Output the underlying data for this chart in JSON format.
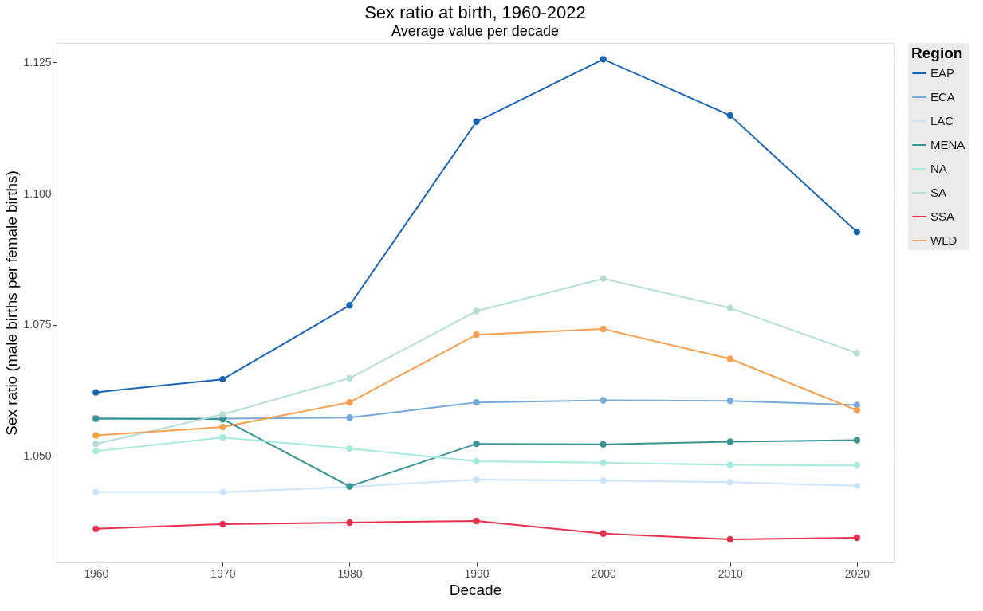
{
  "chart_data": {
    "type": "line",
    "title": "Sex ratio at birth, 1960-2022",
    "subtitle": "Average value per decade",
    "xlabel": "Decade",
    "ylabel": "Sex ratio (male births per female births)",
    "legend_title": "Region",
    "x": [
      1960,
      1970,
      1980,
      1990,
      2000,
      2010,
      2020
    ],
    "series": [
      {
        "name": "EAP",
        "color": "#1764b4",
        "values": [
          1.0621,
          1.0646,
          1.0787,
          1.1137,
          1.1256,
          1.1149,
          1.0927
        ]
      },
      {
        "name": "ECA",
        "color": "#74a9d8",
        "values": [
          1.0571,
          1.0571,
          1.0573,
          1.0602,
          1.0606,
          1.0605,
          1.0597
        ]
      },
      {
        "name": "LAC",
        "color": "#cce4fb",
        "values": [
          1.0431,
          1.0431,
          1.0441,
          1.0455,
          1.0453,
          1.045,
          1.0443
        ]
      },
      {
        "name": "MENA",
        "color": "#3a9494",
        "values": [
          1.0571,
          1.057,
          1.0442,
          1.0523,
          1.0522,
          1.0527,
          1.053
        ]
      },
      {
        "name": "NA",
        "color": "#a5ebde",
        "values": [
          1.0509,
          1.0535,
          1.0514,
          1.049,
          1.0487,
          1.0483,
          1.0482
        ]
      },
      {
        "name": "SA",
        "color": "#b5ded7",
        "values": [
          1.0523,
          1.0579,
          1.0648,
          1.0776,
          1.0838,
          1.0782,
          1.0696
        ]
      },
      {
        "name": "SSA",
        "color": "#e8304e",
        "values": [
          1.0361,
          1.037,
          1.0373,
          1.0376,
          1.0352,
          1.0341,
          1.0344
        ]
      },
      {
        "name": "WLD",
        "color": "#f5a04f",
        "values": [
          1.0539,
          1.0555,
          1.0602,
          1.0731,
          1.0742,
          1.0685,
          1.0587
        ]
      }
    ],
    "xlim": [
      1956.9,
      2022.9
    ],
    "xticks": [
      1960,
      1970,
      1980,
      1990,
      2000,
      2010,
      2020
    ],
    "ylim": [
      1.0297,
      1.1287
    ],
    "yticks": [
      {
        "value": 1.05,
        "label": "1.050"
      },
      {
        "value": 1.075,
        "label": "1.075"
      },
      {
        "value": 1.1,
        "label": "1.100"
      },
      {
        "value": 1.125,
        "label": "1.125"
      }
    ],
    "grid": true,
    "legend": "right",
    "marker": "circle",
    "line_style": "solid"
  }
}
